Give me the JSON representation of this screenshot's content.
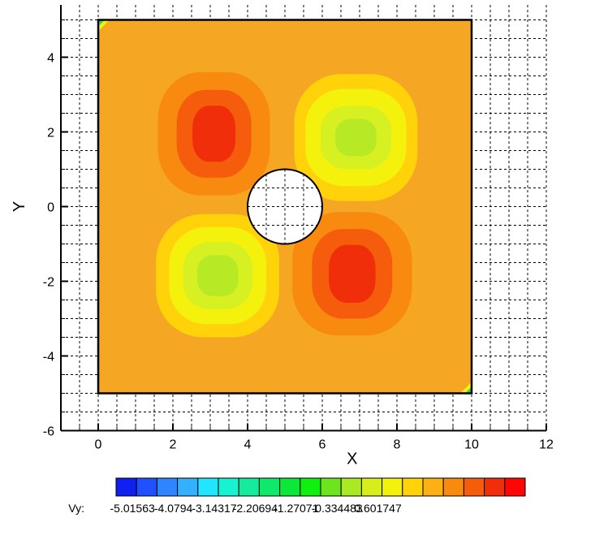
{
  "chart_data": {
    "type": "heatmap",
    "title": "",
    "xlabel": "X",
    "ylabel": "Y",
    "xlim": [
      -1,
      12
    ],
    "ylim": [
      -6,
      5.4
    ],
    "xticks": [
      0,
      2,
      4,
      6,
      8,
      10,
      12
    ],
    "yticks": [
      -6,
      -4,
      -2,
      0,
      2,
      4
    ],
    "grid": true,
    "domain": {
      "xmin": 0,
      "xmax": 10,
      "ymin": -5,
      "ymax": 5
    },
    "obstacle": {
      "shape": "circle",
      "cx": 5,
      "cy": 0,
      "r": 1
    },
    "background_level_color": "#f5a623",
    "contour_regions": [
      {
        "name": "upper-left-vortex",
        "cx": 3.1,
        "cy": 1.95,
        "colors": [
          "#f88a10",
          "#f55d0c",
          "#f02e0a"
        ],
        "extents": [
          [
            3.0,
            3.3
          ],
          [
            2.0,
            2.35
          ],
          [
            1.15,
            1.5
          ]
        ]
      },
      {
        "name": "lower-right-vortex",
        "cx": 6.8,
        "cy": -1.8,
        "colors": [
          "#f88a10",
          "#f55d0c",
          "#f02e0a"
        ],
        "extents": [
          [
            3.2,
            3.3
          ],
          [
            2.15,
            2.4
          ],
          [
            1.25,
            1.55
          ]
        ]
      },
      {
        "name": "upper-right-vortex",
        "cx": 6.9,
        "cy": 1.85,
        "colors": [
          "#ffd20a",
          "#f4f20c",
          "#d7f022",
          "#b7ea24"
        ],
        "extents": [
          [
            3.3,
            3.4
          ],
          [
            2.7,
            2.6
          ],
          [
            1.9,
            1.7
          ],
          [
            1.1,
            1.0
          ]
        ]
      },
      {
        "name": "lower-left-vortex",
        "cx": 3.2,
        "cy": -1.85,
        "colors": [
          "#ffd20a",
          "#f4f20c",
          "#d7f022",
          "#b7ea24"
        ],
        "extents": [
          [
            3.3,
            3.3
          ],
          [
            2.6,
            2.6
          ],
          [
            1.85,
            1.8
          ],
          [
            1.1,
            1.1
          ]
        ]
      }
    ],
    "legend": {
      "variable": "Vy:",
      "colors": [
        "#1020f0",
        "#2050ff",
        "#2f84ff",
        "#33b0ff",
        "#22e6ff",
        "#18f2d0",
        "#14ec9c",
        "#10e86c",
        "#0ce83a",
        "#10f010",
        "#6ee41e",
        "#aaea22",
        "#d8ee1c",
        "#f4f20c",
        "#ffd20a",
        "#fcb014",
        "#f88a10",
        "#f55d0c",
        "#f02e0a",
        "#ff0606"
      ],
      "labels": [
        "-5.01563",
        "-4.0794",
        "-3.14317",
        "-2.20694",
        "-1.27071",
        "-0.334483",
        "0.601747"
      ],
      "label_offsets": [
        0,
        2,
        4,
        6,
        8,
        10,
        12
      ]
    },
    "corner_patches": [
      {
        "corner": "top-left",
        "colors": [
          "#f4f20c",
          "#2fd06e"
        ]
      },
      {
        "corner": "bottom-right",
        "colors": [
          "#f4f20c",
          "#2fd06e"
        ]
      }
    ]
  }
}
